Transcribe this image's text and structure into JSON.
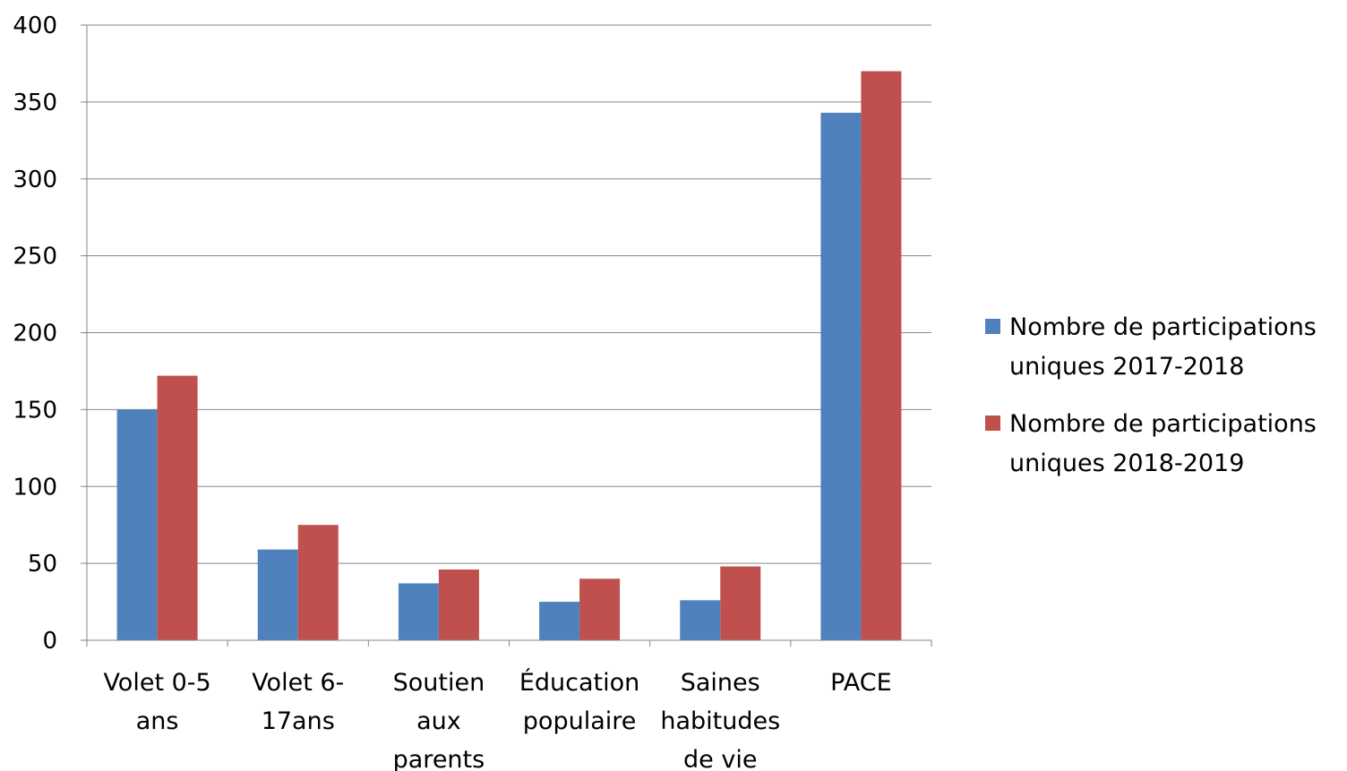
{
  "chart_data": {
    "type": "bar",
    "title": "",
    "xlabel": "",
    "ylabel": "",
    "ylim": [
      0,
      400
    ],
    "yticks": [
      0,
      50,
      100,
      150,
      200,
      250,
      300,
      350,
      400
    ],
    "grid": true,
    "legend_position": "right",
    "categories": [
      [
        "Volet 0-5",
        "ans"
      ],
      [
        "Volet 6-",
        "17ans"
      ],
      [
        "Soutien",
        "aux",
        "parents"
      ],
      [
        "Éducation",
        "populaire"
      ],
      [
        "Saines",
        "habitudes",
        "de vie"
      ],
      [
        "PACE"
      ]
    ],
    "series": [
      {
        "name": "Nombre de participations uniques 2017-2018",
        "legend_lines": [
          "Nombre de participations",
          "uniques 2017-2018"
        ],
        "color": "#4f81bd",
        "values": [
          150,
          59,
          37,
          25,
          26,
          343
        ]
      },
      {
        "name": "Nombre de participations uniques 2018-2019",
        "legend_lines": [
          "Nombre de participations",
          "uniques 2018-2019"
        ],
        "color": "#c0504d",
        "values": [
          172,
          75,
          46,
          40,
          48,
          370
        ]
      }
    ]
  }
}
